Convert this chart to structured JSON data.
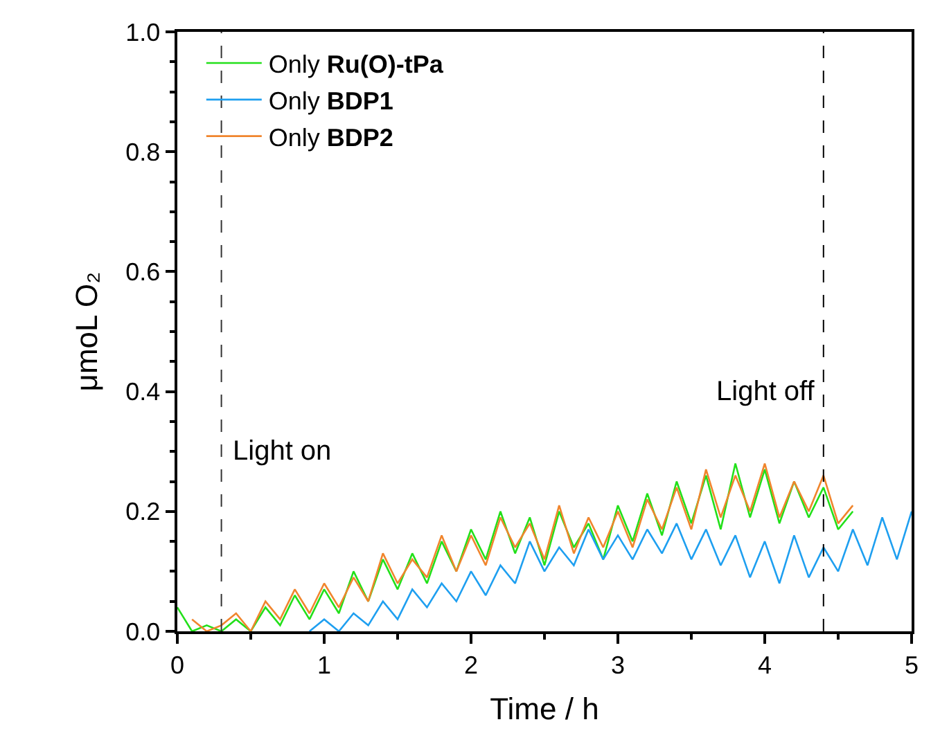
{
  "chart_data": {
    "type": "line",
    "xlabel": "Time / h",
    "ylabel": "μmoL O₂",
    "xlim": [
      0,
      5
    ],
    "ylim": [
      0,
      1.0
    ],
    "xticks": [
      0,
      1,
      2,
      3,
      4,
      5
    ],
    "yticks": [
      {
        "value": 0,
        "label": "0.0"
      },
      {
        "value": 0.2,
        "label": "0.2"
      },
      {
        "value": 0.4,
        "label": "0.4"
      },
      {
        "value": 0.6,
        "label": "0.6"
      },
      {
        "value": 0.8,
        "label": "0.8"
      },
      {
        "value": 1.0,
        "label": "1.0"
      }
    ],
    "legend": "top left",
    "line_style": "solid",
    "marker": "none",
    "ref_lines": [
      {
        "axis": "x",
        "value": 0.3,
        "label": "Light on",
        "color": "#333333",
        "line_style": "dashed"
      },
      {
        "axis": "x",
        "value": 4.4,
        "label": "Light off",
        "color": "#000000",
        "line_style": "dashed"
      }
    ],
    "series": [
      {
        "name": "Only Ru(O)-tPa",
        "color": "#22e01a",
        "x": [
          0,
          0.1,
          0.2,
          0.3,
          0.4,
          0.5,
          0.6,
          0.7,
          0.8,
          0.9,
          1.0,
          1.1,
          1.2,
          1.3,
          1.4,
          1.5,
          1.6,
          1.7,
          1.8,
          1.9,
          2.0,
          2.1,
          2.2,
          2.3,
          2.4,
          2.5,
          2.6,
          2.7,
          2.8,
          2.9,
          3.0,
          3.1,
          3.2,
          3.3,
          3.4,
          3.5,
          3.6,
          3.7,
          3.8,
          3.9,
          4.0,
          4.1,
          4.2,
          4.3,
          4.4,
          4.5,
          4.6
        ],
        "values": [
          0.04,
          0,
          0.01,
          0,
          0.02,
          0.0,
          0.04,
          0.01,
          0.06,
          0.02,
          0.07,
          0.03,
          0.1,
          0.05,
          0.12,
          0.07,
          0.13,
          0.08,
          0.15,
          0.1,
          0.17,
          0.12,
          0.2,
          0.13,
          0.19,
          0.11,
          0.2,
          0.14,
          0.18,
          0.12,
          0.21,
          0.15,
          0.23,
          0.16,
          0.25,
          0.18,
          0.26,
          0.17,
          0.28,
          0.19,
          0.27,
          0.18,
          0.25,
          0.19,
          0.24,
          0.17,
          0.2
        ]
      },
      {
        "name": "Only BDP1",
        "color": "#1e9ff0",
        "x": [
          0.9,
          1.0,
          1.1,
          1.2,
          1.3,
          1.4,
          1.5,
          1.6,
          1.7,
          1.8,
          1.9,
          2.0,
          2.1,
          2.2,
          2.3,
          2.4,
          2.5,
          2.6,
          2.7,
          2.8,
          2.9,
          3.0,
          3.1,
          3.2,
          3.3,
          3.4,
          3.5,
          3.6,
          3.7,
          3.8,
          3.9,
          4.0,
          4.1,
          4.2,
          4.3,
          4.4,
          4.5,
          4.6,
          4.7,
          4.8,
          4.9,
          5.0
        ],
        "values": [
          0,
          0.02,
          0,
          0.03,
          0.01,
          0.05,
          0.02,
          0.07,
          0.04,
          0.08,
          0.05,
          0.1,
          0.06,
          0.11,
          0.08,
          0.15,
          0.1,
          0.14,
          0.11,
          0.17,
          0.12,
          0.16,
          0.12,
          0.17,
          0.13,
          0.18,
          0.12,
          0.17,
          0.11,
          0.16,
          0.09,
          0.15,
          0.08,
          0.16,
          0.09,
          0.14,
          0.1,
          0.17,
          0.11,
          0.19,
          0.12,
          0.2
        ]
      },
      {
        "name": "Only BDP2",
        "color": "#f0852d",
        "x": [
          0.1,
          0.2,
          0.3,
          0.4,
          0.5,
          0.6,
          0.7,
          0.8,
          0.9,
          1.0,
          1.1,
          1.2,
          1.3,
          1.4,
          1.5,
          1.6,
          1.7,
          1.8,
          1.9,
          2.0,
          2.1,
          2.2,
          2.3,
          2.4,
          2.5,
          2.6,
          2.7,
          2.8,
          2.9,
          3.0,
          3.1,
          3.2,
          3.3,
          3.4,
          3.5,
          3.6,
          3.7,
          3.8,
          3.9,
          4.0,
          4.1,
          4.2,
          4.3,
          4.4,
          4.5,
          4.6
        ],
        "values": [
          0.02,
          0,
          0.01,
          0.03,
          0.0,
          0.05,
          0.02,
          0.07,
          0.03,
          0.08,
          0.04,
          0.09,
          0.05,
          0.13,
          0.08,
          0.12,
          0.09,
          0.16,
          0.1,
          0.16,
          0.11,
          0.19,
          0.14,
          0.18,
          0.12,
          0.21,
          0.13,
          0.19,
          0.14,
          0.2,
          0.14,
          0.22,
          0.17,
          0.24,
          0.17,
          0.27,
          0.19,
          0.26,
          0.2,
          0.28,
          0.19,
          0.25,
          0.2,
          0.26,
          0.18,
          0.21
        ]
      }
    ]
  }
}
